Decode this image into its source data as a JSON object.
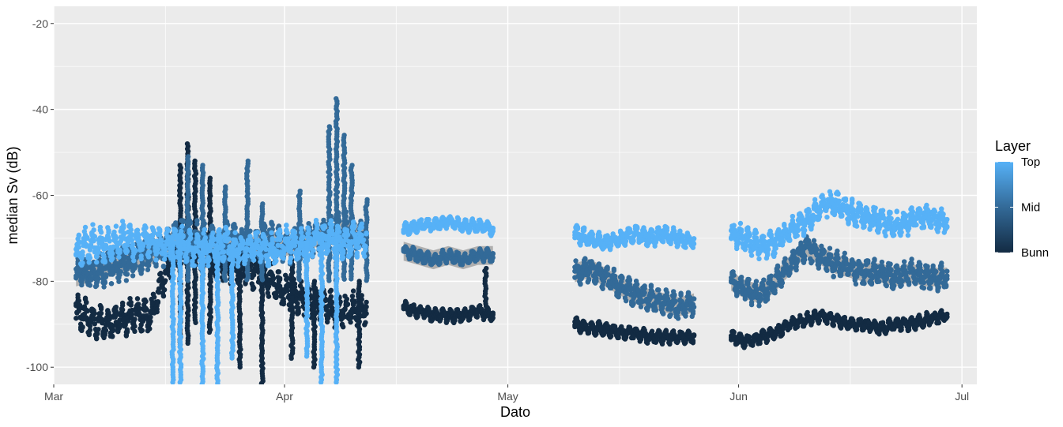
{
  "chart_data": {
    "type": "scatter",
    "title": "",
    "xlabel": "Dato",
    "ylabel": "median Sv  (dB)",
    "x_type": "date",
    "xlim": [
      "2020-03-01",
      "2020-07-03"
    ],
    "ylim": [
      -104,
      -16
    ],
    "x_ticks": [
      {
        "date": "2020-03-01",
        "label": "Mar"
      },
      {
        "date": "2020-04-01",
        "label": "Apr"
      },
      {
        "date": "2020-05-01",
        "label": "May"
      },
      {
        "date": "2020-06-01",
        "label": "Jun"
      },
      {
        "date": "2020-07-01",
        "label": "Jul"
      }
    ],
    "x_minor_ticks": [
      "2020-03-16",
      "2020-04-16",
      "2020-05-16",
      "2020-06-16"
    ],
    "y_ticks": [
      -100,
      -80,
      -60,
      -40,
      -20
    ],
    "y_minor_ticks": [
      -90,
      -70,
      -50,
      -30
    ],
    "grid": true,
    "legend": {
      "title": "Layer",
      "placement": "right",
      "labels": [
        "Top",
        "Mid",
        "Bunn"
      ],
      "type": "colorbar"
    },
    "colors": {
      "Top": "#56B1F7",
      "Mid": "#336A98",
      "Bunn": "#132B43",
      "band": "#A8A8A8",
      "panel": "#EBEBEB",
      "grid": "#FFFFFF"
    },
    "series": [
      {
        "name": "Top",
        "segments": [
          {
            "points": [
              [
                "2020-03-04",
                -73
              ],
              [
                "2020-03-06",
                -71
              ],
              [
                "2020-03-08",
                -72
              ],
              [
                "2020-03-10",
                -70
              ],
              [
                "2020-03-12",
                -71
              ],
              [
                "2020-03-14",
                -70
              ],
              [
                "2020-03-16",
                -72
              ],
              [
                "2020-03-18",
                -71
              ],
              [
                "2020-03-20",
                -73
              ],
              [
                "2020-03-22",
                -72
              ],
              [
                "2020-03-24",
                -71
              ],
              [
                "2020-03-26",
                -73
              ],
              [
                "2020-03-28",
                -72
              ],
              [
                "2020-03-30",
                -73
              ],
              [
                "2020-04-01",
                -71
              ],
              [
                "2020-04-03",
                -72
              ],
              [
                "2020-04-05",
                -70
              ],
              [
                "2020-04-07",
                -70
              ],
              [
                "2020-04-09",
                -71
              ],
              [
                "2020-04-12",
                -70
              ]
            ],
            "spread": 4
          },
          {
            "points": [
              [
                "2020-04-17",
                -68
              ],
              [
                "2020-04-19",
                -67
              ],
              [
                "2020-04-21",
                -67
              ],
              [
                "2020-04-23",
                -66
              ],
              [
                "2020-04-25",
                -67
              ],
              [
                "2020-04-27",
                -67
              ],
              [
                "2020-04-29",
                -68
              ]
            ],
            "spread": 1.5
          },
          {
            "points": [
              [
                "2020-05-10",
                -69
              ],
              [
                "2020-05-12",
                -70
              ],
              [
                "2020-05-14",
                -71
              ],
              [
                "2020-05-16",
                -70
              ],
              [
                "2020-05-18",
                -69
              ],
              [
                "2020-05-20",
                -70
              ],
              [
                "2020-05-22",
                -69
              ],
              [
                "2020-05-24",
                -70
              ],
              [
                "2020-05-26",
                -71
              ]
            ],
            "spread": 2
          },
          {
            "points": [
              [
                "2020-05-31",
                -69
              ],
              [
                "2020-06-02",
                -70
              ],
              [
                "2020-06-04",
                -72
              ],
              [
                "2020-06-06",
                -71
              ],
              [
                "2020-06-08",
                -68
              ],
              [
                "2020-06-10",
                -66
              ],
              [
                "2020-06-12",
                -63
              ],
              [
                "2020-06-14",
                -62
              ],
              [
                "2020-06-16",
                -64
              ],
              [
                "2020-06-18",
                -65
              ],
              [
                "2020-06-20",
                -66
              ],
              [
                "2020-06-22",
                -67
              ],
              [
                "2020-06-24",
                -66
              ],
              [
                "2020-06-26",
                -65
              ],
              [
                "2020-06-29",
                -66
              ]
            ],
            "spread": 3
          }
        ]
      },
      {
        "name": "Mid",
        "segments": [
          {
            "points": [
              [
                "2020-03-04",
                -79
              ],
              [
                "2020-03-06",
                -78
              ],
              [
                "2020-03-08",
                -77
              ],
              [
                "2020-03-10",
                -76
              ],
              [
                "2020-03-12",
                -75
              ],
              [
                "2020-03-14",
                -74
              ],
              [
                "2020-03-16",
                -72
              ],
              [
                "2020-03-18",
                -69
              ],
              [
                "2020-03-20",
                -70
              ],
              [
                "2020-03-22",
                -71
              ],
              [
                "2020-03-24",
                -70
              ],
              [
                "2020-03-26",
                -71
              ],
              [
                "2020-03-28",
                -72
              ],
              [
                "2020-03-30",
                -70
              ],
              [
                "2020-04-01",
                -72
              ],
              [
                "2020-04-03",
                -71
              ],
              [
                "2020-04-05",
                -70
              ],
              [
                "2020-04-07",
                -69
              ],
              [
                "2020-04-09",
                -68
              ],
              [
                "2020-04-12",
                -70
              ]
            ],
            "spread": 4
          },
          {
            "points": [
              [
                "2020-04-17",
                -73
              ],
              [
                "2020-04-19",
                -74
              ],
              [
                "2020-04-21",
                -75
              ],
              [
                "2020-04-23",
                -74
              ],
              [
                "2020-04-25",
                -75
              ],
              [
                "2020-04-27",
                -74
              ],
              [
                "2020-04-29",
                -74
              ]
            ],
            "spread": 1.5
          },
          {
            "points": [
              [
                "2020-05-10",
                -78
              ],
              [
                "2020-05-12",
                -77
              ],
              [
                "2020-05-14",
                -79
              ],
              [
                "2020-05-16",
                -81
              ],
              [
                "2020-05-18",
                -83
              ],
              [
                "2020-05-20",
                -84
              ],
              [
                "2020-05-22",
                -85
              ],
              [
                "2020-05-24",
                -86
              ],
              [
                "2020-05-26",
                -85
              ]
            ],
            "spread": 3
          },
          {
            "points": [
              [
                "2020-05-31",
                -80
              ],
              [
                "2020-06-02",
                -82
              ],
              [
                "2020-06-04",
                -83
              ],
              [
                "2020-06-06",
                -80
              ],
              [
                "2020-06-08",
                -76
              ],
              [
                "2020-06-10",
                -72
              ],
              [
                "2020-06-12",
                -74
              ],
              [
                "2020-06-14",
                -76
              ],
              [
                "2020-06-16",
                -77
              ],
              [
                "2020-06-18",
                -78
              ],
              [
                "2020-06-20",
                -78
              ],
              [
                "2020-06-22",
                -79
              ],
              [
                "2020-06-24",
                -78
              ],
              [
                "2020-06-26",
                -79
              ],
              [
                "2020-06-29",
                -79
              ]
            ],
            "spread": 3
          }
        ]
      },
      {
        "name": "Bunn",
        "segments": [
          {
            "points": [
              [
                "2020-03-04",
                -87
              ],
              [
                "2020-03-06",
                -89
              ],
              [
                "2020-03-08",
                -90
              ],
              [
                "2020-03-10",
                -89
              ],
              [
                "2020-03-12",
                -88
              ],
              [
                "2020-03-14",
                -88
              ],
              [
                "2020-03-16",
                -78
              ],
              [
                "2020-03-18",
                -73
              ],
              [
                "2020-03-20",
                -72
              ],
              [
                "2020-03-22",
                -74
              ],
              [
                "2020-03-24",
                -76
              ],
              [
                "2020-03-26",
                -77
              ],
              [
                "2020-03-28",
                -78
              ],
              [
                "2020-03-30",
                -80
              ],
              [
                "2020-04-01",
                -82
              ],
              [
                "2020-04-03",
                -84
              ],
              [
                "2020-04-05",
                -85
              ],
              [
                "2020-04-07",
                -86
              ],
              [
                "2020-04-09",
                -87
              ],
              [
                "2020-04-12",
                -86
              ]
            ],
            "spread": 4
          },
          {
            "points": [
              [
                "2020-04-17",
                -86
              ],
              [
                "2020-04-19",
                -87
              ],
              [
                "2020-04-21",
                -88
              ],
              [
                "2020-04-23",
                -88
              ],
              [
                "2020-04-25",
                -88
              ],
              [
                "2020-04-27",
                -87
              ],
              [
                "2020-04-29",
                -88
              ]
            ],
            "spread": 1.5
          },
          {
            "points": [
              [
                "2020-05-10",
                -90
              ],
              [
                "2020-05-12",
                -91
              ],
              [
                "2020-05-14",
                -91
              ],
              [
                "2020-05-16",
                -92
              ],
              [
                "2020-05-18",
                -92
              ],
              [
                "2020-05-20",
                -93
              ],
              [
                "2020-05-22",
                -93
              ],
              [
                "2020-05-24",
                -93
              ],
              [
                "2020-05-26",
                -93
              ]
            ],
            "spread": 1.5
          },
          {
            "points": [
              [
                "2020-05-31",
                -93
              ],
              [
                "2020-06-02",
                -94
              ],
              [
                "2020-06-04",
                -93
              ],
              [
                "2020-06-06",
                -92
              ],
              [
                "2020-06-08",
                -90
              ],
              [
                "2020-06-10",
                -89
              ],
              [
                "2020-06-12",
                -88
              ],
              [
                "2020-06-14",
                -89
              ],
              [
                "2020-06-16",
                -90
              ],
              [
                "2020-06-18",
                -90
              ],
              [
                "2020-06-20",
                -91
              ],
              [
                "2020-06-22",
                -90
              ],
              [
                "2020-06-24",
                -90
              ],
              [
                "2020-06-26",
                -89
              ],
              [
                "2020-06-29",
                -88
              ]
            ],
            "spread": 1.5
          }
        ]
      }
    ],
    "excursions": [
      {
        "series": "Top",
        "date": "2020-03-17",
        "low": -104,
        "high": -70
      },
      {
        "series": "Top",
        "date": "2020-03-18",
        "low": -104,
        "high": -70
      },
      {
        "series": "Top",
        "date": "2020-03-21",
        "low": -104,
        "high": -71
      },
      {
        "series": "Top",
        "date": "2020-03-23",
        "low": -104,
        "high": -72
      },
      {
        "series": "Top",
        "date": "2020-03-25",
        "low": -98,
        "high": -72
      },
      {
        "series": "Top",
        "date": "2020-04-04",
        "low": -98,
        "high": -71
      },
      {
        "series": "Top",
        "date": "2020-04-06",
        "low": -104,
        "high": -70
      },
      {
        "series": "Top",
        "date": "2020-04-08",
        "low": -104,
        "high": -70
      },
      {
        "series": "Mid",
        "date": "2020-03-19",
        "low": -80,
        "high": -51
      },
      {
        "series": "Mid",
        "date": "2020-03-21",
        "low": -80,
        "high": -53
      },
      {
        "series": "Mid",
        "date": "2020-03-24",
        "low": -80,
        "high": -58
      },
      {
        "series": "Mid",
        "date": "2020-03-27",
        "low": -80,
        "high": -52
      },
      {
        "series": "Mid",
        "date": "2020-03-29",
        "low": -80,
        "high": -62
      },
      {
        "series": "Mid",
        "date": "2020-04-03",
        "low": -80,
        "high": -59
      },
      {
        "series": "Mid",
        "date": "2020-04-07",
        "low": -80,
        "high": -44
      },
      {
        "series": "Mid",
        "date": "2020-04-08",
        "low": -80,
        "high": -37.5
      },
      {
        "series": "Mid",
        "date": "2020-04-09",
        "low": -80,
        "high": -46
      },
      {
        "series": "Mid",
        "date": "2020-04-10",
        "low": -80,
        "high": -53
      },
      {
        "series": "Mid",
        "date": "2020-04-12",
        "low": -80,
        "high": -61
      },
      {
        "series": "Bunn",
        "date": "2020-03-18",
        "low": -95,
        "high": -53
      },
      {
        "series": "Bunn",
        "date": "2020-03-19",
        "low": -95,
        "high": -48
      },
      {
        "series": "Bunn",
        "date": "2020-03-20",
        "low": -90,
        "high": -52
      },
      {
        "series": "Bunn",
        "date": "2020-03-22",
        "low": -92,
        "high": -56
      },
      {
        "series": "Bunn",
        "date": "2020-03-26",
        "low": -100,
        "high": -70
      },
      {
        "series": "Bunn",
        "date": "2020-03-29",
        "low": -104,
        "high": -75
      },
      {
        "series": "Bunn",
        "date": "2020-04-02",
        "low": -98,
        "high": -75
      },
      {
        "series": "Bunn",
        "date": "2020-04-05",
        "low": -100,
        "high": -80
      },
      {
        "series": "Bunn",
        "date": "2020-04-11",
        "low": -100,
        "high": -80
      },
      {
        "series": "Bunn",
        "date": "2020-04-28",
        "low": -86,
        "high": -77
      }
    ]
  }
}
